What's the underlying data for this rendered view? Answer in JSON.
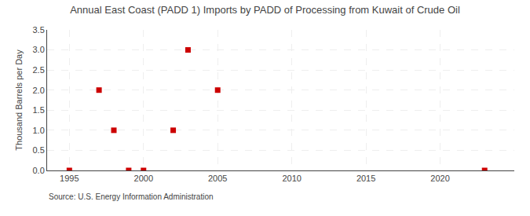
{
  "chart_data": {
    "type": "scatter",
    "title": "Annual East Coast (PADD 1) Imports by PADD of Processing from Kuwait of Crude Oil",
    "ylabel": "Thousand Barrels per Day",
    "annotations": [
      "Source: U.S. Energy Information Administration"
    ],
    "x": [
      1995,
      1997,
      1998,
      1999,
      2000,
      2002,
      2003,
      2005,
      2023
    ],
    "values": [
      0.0,
      2.0,
      1.0,
      0.0,
      0.0,
      1.0,
      3.0,
      2.0,
      0.0
    ],
    "color": "#cc0000",
    "marker": "square",
    "xlim": [
      1993.5,
      2025
    ],
    "xticks": [
      1995,
      2000,
      2005,
      2010,
      2015,
      2020
    ],
    "ylim": [
      0,
      3.5
    ],
    "yticks": [
      {
        "value": 0,
        "label": "0.0"
      },
      0.5,
      {
        "value": 1,
        "label": "1.0"
      },
      1.5,
      {
        "value": 2,
        "label": "2.0"
      },
      2.5,
      {
        "value": 3,
        "label": "3.0"
      },
      3.5
    ],
    "grid": true
  }
}
